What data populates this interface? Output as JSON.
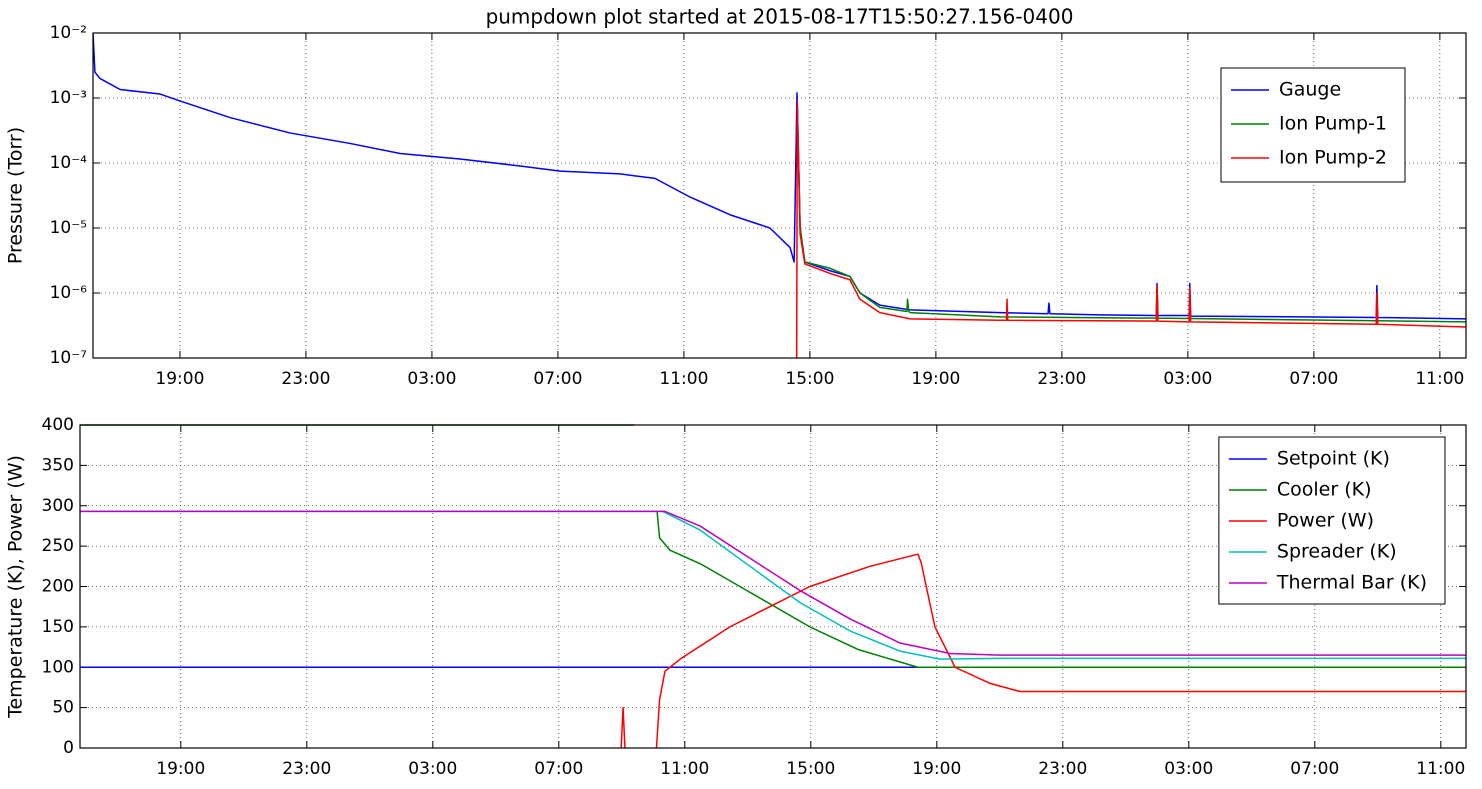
{
  "chart_data": [
    {
      "type": "line",
      "title": "pumpdown plot started at 2015-08-17T15:50:27.156-0400",
      "ylabel": "Pressure (Torr)",
      "yscale": "log",
      "grid": true,
      "legend": "upper right",
      "xlim": [
        16.24,
        59.83
      ],
      "ylim": [
        1e-07,
        0.01
      ],
      "xticks": [
        {
          "value": 19,
          "label": "19:00"
        },
        {
          "value": 23,
          "label": "23:00"
        },
        {
          "value": 27,
          "label": "03:00"
        },
        {
          "value": 31,
          "label": "07:00"
        },
        {
          "value": 35,
          "label": "11:00"
        },
        {
          "value": 39,
          "label": "15:00"
        },
        {
          "value": 43,
          "label": "19:00"
        },
        {
          "value": 47,
          "label": "23:00"
        },
        {
          "value": 51,
          "label": "03:00"
        },
        {
          "value": 55,
          "label": "07:00"
        },
        {
          "value": 59,
          "label": "11:00"
        }
      ],
      "yticks": [
        {
          "value": 1e-07,
          "label": "10⁻⁷"
        },
        {
          "value": 1e-06,
          "label": "10⁻⁶"
        },
        {
          "value": 1e-05,
          "label": "10⁻⁵"
        },
        {
          "value": 0.0001,
          "label": "10⁻⁴"
        },
        {
          "value": 0.001,
          "label": "10⁻³"
        },
        {
          "value": 0.01,
          "label": "10⁻²"
        }
      ],
      "series": [
        {
          "name": "Gauge",
          "color": "#0000ff",
          "x": [
            16.24,
            16.3,
            16.46,
            17.1,
            18.37,
            19.0,
            20.59,
            22.49,
            24.4,
            25.99,
            27.89,
            29.8,
            31.07,
            32.97,
            34.08,
            35.19,
            36.46,
            37.73,
            38.37,
            38.5,
            38.59,
            38.69,
            38.84,
            39.64,
            40.27,
            40.59,
            41.22,
            42.18,
            45.03,
            46.56,
            46.59,
            46.62,
            48.21,
            50.0,
            50.02,
            50.05,
            51.04,
            51.06,
            51.09,
            54.56,
            56.98,
            57.0,
            57.03,
            59.83
          ],
          "values": [
            0.01,
            0.0025,
            0.002,
            0.00135,
            0.00115,
            0.0009,
            0.0005,
            0.00029,
            0.0002,
            0.00014,
            0.000115,
            9e-05,
            7.5e-05,
            6.8e-05,
            5.8e-05,
            3e-05,
            1.6e-05,
            1e-05,
            5e-06,
            3e-06,
            0.0012,
            1e-05,
            3e-06,
            2.2e-06,
            1.8e-06,
            1e-06,
            6.5e-07,
            5.5e-07,
            5e-07,
            4.8e-07,
            7e-07,
            4.8e-07,
            4.6e-07,
            4.5e-07,
            1.4e-06,
            4.5e-07,
            4.5e-07,
            1.4e-06,
            4.4e-07,
            4.3e-07,
            4.2e-07,
            1.3e-06,
            4.2e-07,
            4e-07
          ]
        },
        {
          "name": "Ion Pump-1",
          "color": "#008000",
          "x": [
            38.6,
            38.69,
            38.84,
            39.64,
            40.27,
            40.59,
            41.22,
            42.08,
            42.1,
            42.14,
            42.18,
            45.03,
            50.0,
            50.02,
            50.05,
            59.83
          ],
          "values": [
            0.0008,
            1e-05,
            3e-06,
            2.4e-06,
            1.8e-06,
            1e-06,
            6e-07,
            5.2e-07,
            8e-07,
            5.2e-07,
            5e-07,
            4.3e-07,
            4.1e-07,
            1.3e-06,
            4.1e-07,
            3.6e-07
          ]
        },
        {
          "name": "Ion Pump-2",
          "color": "#ff0000",
          "x": [
            38.58,
            38.6,
            38.69,
            38.84,
            39.64,
            40.27,
            40.59,
            41.22,
            42.18,
            45.03,
            45.24,
            45.26,
            45.28,
            50.0,
            50.02,
            50.05,
            51.04,
            51.06,
            51.09,
            56.98,
            57.0,
            57.03,
            59.83
          ],
          "values": [
            1e-07,
            0.0009,
            8e-06,
            2.8e-06,
            2e-06,
            1.6e-06,
            8e-07,
            5e-07,
            4e-07,
            3.8e-07,
            3.8e-07,
            8e-07,
            3.8e-07,
            3.7e-07,
            1.3e-06,
            3.7e-07,
            3.6e-07,
            1.2e-06,
            3.6e-07,
            3.3e-07,
            1e-06,
            3.3e-07,
            3e-07
          ]
        }
      ]
    },
    {
      "type": "line",
      "ylabel": "Temperature (K), Power (W)",
      "grid": true,
      "legend": "upper right",
      "xlim": [
        15.8,
        59.8
      ],
      "ylim": [
        0,
        400
      ],
      "xticks": [
        {
          "value": 19,
          "label": "19:00"
        },
        {
          "value": 23,
          "label": "23:00"
        },
        {
          "value": 27,
          "label": "03:00"
        },
        {
          "value": 31,
          "label": "07:00"
        },
        {
          "value": 35,
          "label": "11:00"
        },
        {
          "value": 39,
          "label": "15:00"
        },
        {
          "value": 43,
          "label": "19:00"
        },
        {
          "value": 47,
          "label": "23:00"
        },
        {
          "value": 51,
          "label": "03:00"
        },
        {
          "value": 55,
          "label": "07:00"
        },
        {
          "value": 59,
          "label": "11:00"
        }
      ],
      "yticks": [
        0,
        50,
        100,
        150,
        200,
        250,
        300,
        350,
        400
      ],
      "series": [
        {
          "name": "Setpoint (K)",
          "color": "#0000ff",
          "x": [
            15.8,
            59.8
          ],
          "values": [
            100,
            100
          ]
        },
        {
          "name": "Cooler (K)",
          "color": "#008000",
          "x": [
            15.8,
            33.4,
            33.5,
            34.12,
            34.2,
            34.53,
            35.5,
            36.75,
            38.97,
            40.5,
            42.4,
            59.8
          ],
          "values": [
            400,
            400,
            null,
            293,
            260,
            245,
            228,
            200,
            150,
            122,
            100,
            100
          ]
        },
        {
          "name": "Power (W)",
          "color": "#ff0000",
          "x": [
            32.98,
            33.04,
            33.1,
            33.2,
            34.1,
            34.15,
            34.2,
            34.37,
            34.85,
            36.43,
            38.97,
            40.88,
            42.4,
            42.5,
            42.94,
            43.58,
            44.69,
            45.64,
            59.8
          ],
          "values": [
            0,
            50,
            0,
            null,
            0,
            30,
            60,
            95,
            110,
            150,
            200,
            225,
            240,
            230,
            150,
            100,
            80,
            70,
            70
          ]
        },
        {
          "name": "Spreader (K)",
          "color": "#00bfbf",
          "x": [
            15.8,
            34.3,
            35.48,
            37.07,
            38.66,
            40.24,
            41.83,
            43.1,
            45.0,
            59.8
          ],
          "values": [
            293,
            293,
            270,
            225,
            180,
            145,
            120,
            110,
            111,
            111
          ]
        },
        {
          "name": "Thermal Bar (K)",
          "color": "#bf00bf",
          "x": [
            15.8,
            34.21,
            34.37,
            35.48,
            37.07,
            38.66,
            40.24,
            41.83,
            43.42,
            45.0,
            59.8
          ],
          "values": [
            293,
            293,
            293,
            275,
            235,
            195,
            160,
            130,
            117,
            115,
            115
          ]
        }
      ]
    }
  ]
}
